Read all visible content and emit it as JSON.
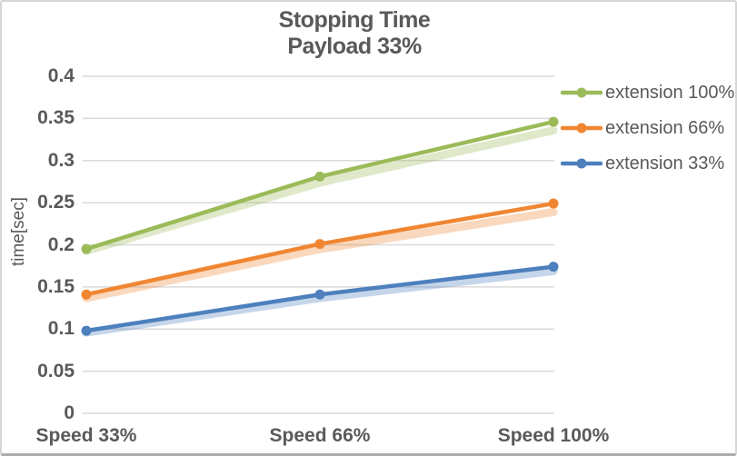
{
  "chart_data": {
    "type": "line",
    "title": "Stopping Time",
    "subtitle": "Payload 33%",
    "ylabel": "time[sec]",
    "xlabel": "",
    "categories": [
      "Speed 33%",
      "Speed 66%",
      "Speed 100%"
    ],
    "series": [
      {
        "name": "extension 100%",
        "color": "#9bbb59",
        "values": [
          0.195,
          0.281,
          0.346
        ],
        "echo_values": [
          0.195,
          0.276,
          0.338
        ]
      },
      {
        "name": "extension 66%",
        "color": "#f08632",
        "values": [
          0.141,
          0.201,
          0.249
        ],
        "echo_values": [
          0.139,
          0.197,
          0.241
        ]
      },
      {
        "name": "extension 33%",
        "color": "#4d80bd",
        "values": [
          0.098,
          0.141,
          0.174
        ],
        "echo_values": [
          0.098,
          0.139,
          0.171
        ]
      }
    ],
    "y_axis": {
      "min": 0,
      "max": 0.4,
      "step": 0.05,
      "tick_labels": [
        "0",
        "0.05",
        "0.1",
        "0.15",
        "0.2",
        "0.25",
        "0.3",
        "0.35",
        "0.4"
      ]
    },
    "legend_position": "top-right",
    "grid": true,
    "colors": {
      "text": "#595959",
      "gridline": "#d9d9d9",
      "frame_border": "#d6d6d6",
      "frame_border_bottom": "#ababab",
      "background": "#ffffff"
    }
  }
}
